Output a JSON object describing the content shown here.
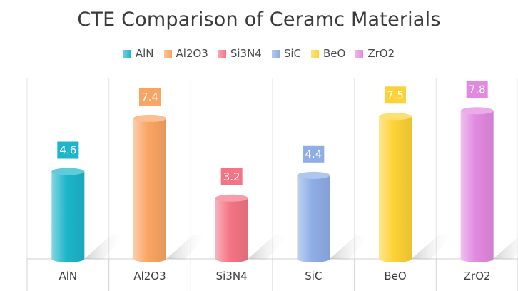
{
  "chart_data": {
    "type": "bar",
    "title": "CTE Comparison of Ceramc Materials",
    "categories": [
      "AlN",
      "Al2O3",
      "Si3N4",
      "SiC",
      "BeO",
      "ZrO2"
    ],
    "values": [
      4.6,
      7.4,
      3.2,
      4.4,
      7.5,
      7.8
    ],
    "value_labels": [
      "4.6",
      "7.4",
      "3.2",
      "4.4",
      "7.5",
      "7.8"
    ],
    "colors": [
      "#1cb5c9",
      "#f9a463",
      "#f47484",
      "#8faee6",
      "#fdd236",
      "#e28ae0"
    ],
    "legend": [
      "AlN",
      "Al2O3",
      "Si3N4",
      "SiC",
      "BeO",
      "ZrO2"
    ],
    "legend_position": "top",
    "xlabel": "",
    "ylabel": "",
    "grid": "vertical",
    "bar_style": "3d-cylinder"
  }
}
